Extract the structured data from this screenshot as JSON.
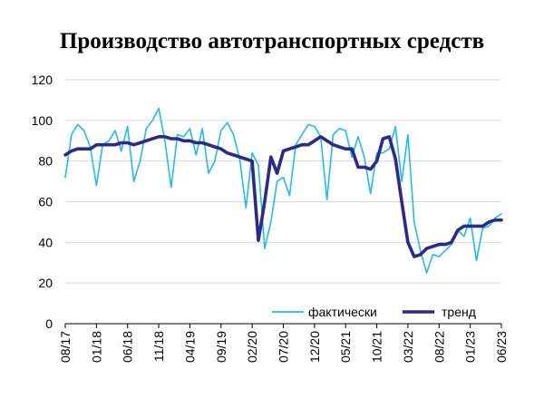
{
  "chart_data": {
    "type": "line",
    "title": "Производство автотранспортных средств",
    "ylim": [
      0,
      120
    ],
    "y_ticks": [
      0,
      20,
      40,
      60,
      80,
      100,
      120
    ],
    "x_tick_labels": [
      "08/17",
      "01/18",
      "06/18",
      "11/18",
      "04/19",
      "09/19",
      "02/20",
      "07/20",
      "12/20",
      "05/21",
      "10/21",
      "03/22",
      "08/22",
      "01/23",
      "06/23"
    ],
    "x_tick_index": [
      0,
      5,
      10,
      15,
      20,
      25,
      30,
      35,
      40,
      45,
      50,
      55,
      60,
      65,
      70
    ],
    "grid": "horizontal",
    "legend_position": "bottom-right",
    "colors": {
      "actual": "#1ebdf0",
      "trend": "#2a2a8c"
    },
    "series": [
      {
        "name": "фактически",
        "values": [
          72,
          93,
          98,
          95,
          87,
          68,
          88,
          90,
          95,
          85,
          97,
          70,
          80,
          96,
          100,
          106,
          90,
          67,
          93,
          92,
          96,
          83,
          96,
          74,
          80,
          95,
          99,
          93,
          81,
          57,
          84,
          78,
          37,
          50,
          70,
          72,
          63,
          88,
          93,
          98,
          97,
          92,
          61,
          93,
          96,
          95,
          82,
          92,
          82,
          64,
          84,
          84,
          86,
          97,
          70,
          93,
          50,
          36,
          25,
          34,
          33,
          36,
          39,
          46,
          43,
          52,
          31,
          47,
          48,
          52,
          54
        ]
      },
      {
        "name": "тренд",
        "values": [
          83,
          85,
          86,
          86,
          86,
          88,
          88,
          88,
          88,
          89,
          89,
          88,
          89,
          90,
          91,
          92,
          92,
          91,
          91,
          90,
          90,
          89,
          89,
          88,
          87,
          86,
          84,
          83,
          82,
          81,
          80,
          41,
          60,
          82,
          74,
          85,
          86,
          87,
          88,
          88,
          90,
          92,
          90,
          88,
          87,
          86,
          86,
          77,
          77,
          76,
          80,
          91,
          92,
          81,
          60,
          40,
          33,
          34,
          37,
          38,
          39,
          39,
          40,
          46,
          48,
          48,
          48,
          48,
          50,
          51,
          51
        ]
      }
    ]
  }
}
